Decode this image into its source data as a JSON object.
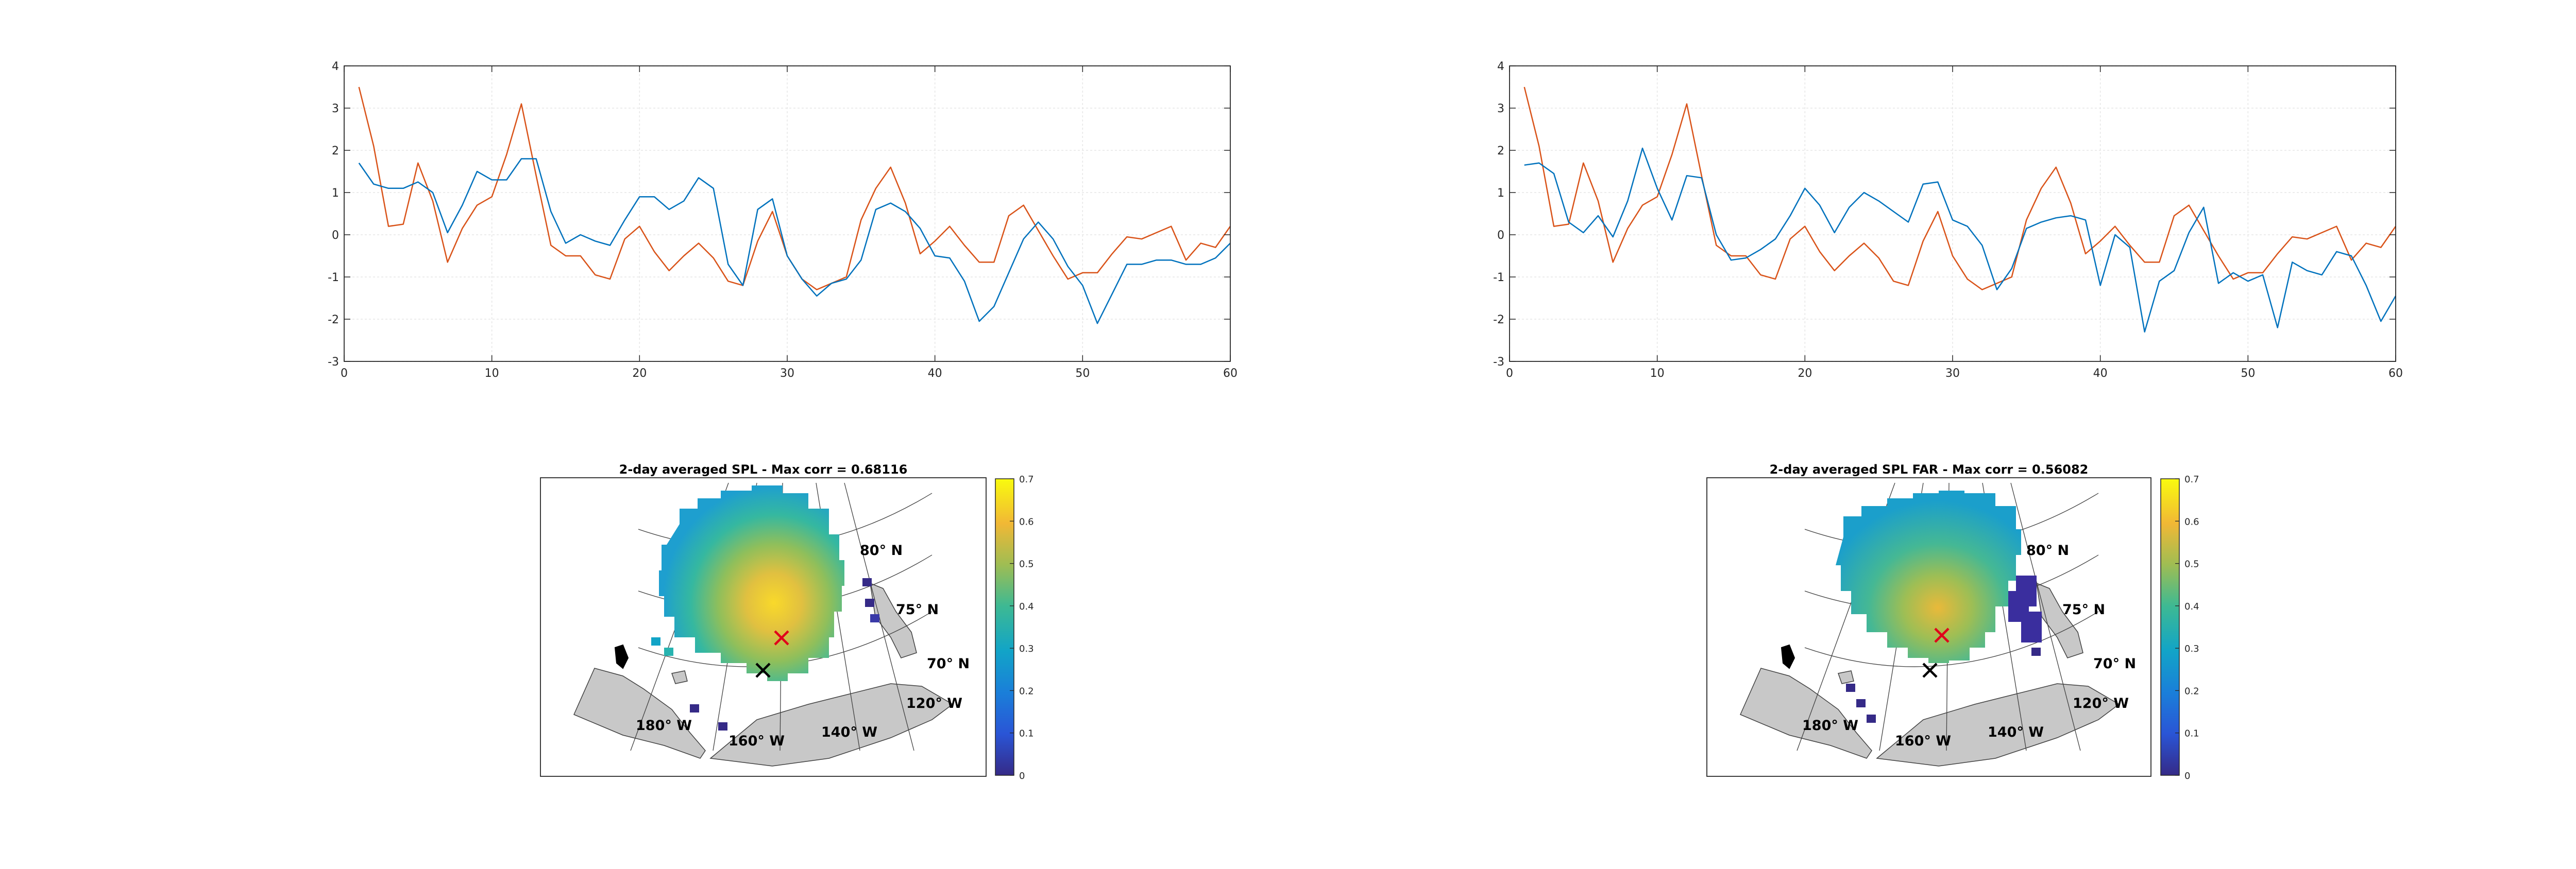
{
  "chart_data": [
    {
      "type": "line",
      "xlim": [
        0,
        60
      ],
      "ylim": [
        -3,
        4
      ],
      "xticks": [
        "0",
        "10",
        "20",
        "30",
        "40",
        "50",
        "60"
      ],
      "yticks": [
        "4",
        "3",
        "2",
        "1",
        "0",
        "-1",
        "-2",
        "-3"
      ],
      "grid": true,
      "colors": [
        "#d95319",
        "#0072bd"
      ],
      "x": [
        1,
        2,
        3,
        4,
        5,
        6,
        7,
        8,
        9,
        10,
        11,
        12,
        13,
        14,
        15,
        16,
        17,
        18,
        19,
        20,
        21,
        22,
        23,
        24,
        25,
        26,
        27,
        28,
        29,
        30,
        31,
        32,
        33,
        34,
        35,
        36,
        37,
        38,
        39,
        40,
        41,
        42,
        43,
        44,
        45,
        46,
        47,
        48,
        49,
        50,
        51,
        52,
        53,
        54,
        55,
        56,
        57,
        58,
        59,
        60
      ],
      "series": [
        {
          "values": [
            3.5,
            2.1,
            0.2,
            0.25,
            1.7,
            0.8,
            -0.65,
            0.15,
            0.7,
            0.9,
            1.9,
            3.1,
            1.4,
            -0.25,
            -0.5,
            -0.5,
            -0.95,
            -1.05,
            -0.1,
            0.2,
            -0.4,
            -0.85,
            -0.5,
            -0.2,
            -0.55,
            -1.1,
            -1.2,
            -0.15,
            0.55,
            -0.5,
            -1.05,
            -1.3,
            -1.15,
            -1.0,
            0.35,
            1.1,
            1.6,
            0.75,
            -0.45,
            -0.15,
            0.2,
            -0.25,
            -0.65,
            -0.65,
            0.45,
            0.7,
            0.1,
            -0.5,
            -1.05,
            -0.9,
            -0.9,
            -0.45,
            -0.05,
            -0.1,
            0.05,
            0.2,
            -0.6,
            -0.2,
            -0.3,
            0.2
          ]
        },
        {
          "values": [
            1.7,
            1.2,
            1.1,
            1.1,
            1.25,
            1.0,
            0.05,
            0.7,
            1.5,
            1.3,
            1.3,
            1.8,
            1.8,
            0.55,
            -0.2,
            0.0,
            -0.15,
            -0.25,
            0.35,
            0.9,
            0.9,
            0.6,
            0.8,
            1.35,
            1.1,
            -0.7,
            -1.2,
            0.6,
            0.85,
            -0.5,
            -1.05,
            -1.45,
            -1.15,
            -1.05,
            -0.6,
            0.6,
            0.75,
            0.55,
            0.15,
            -0.5,
            -0.55,
            -1.1,
            -2.05,
            -1.7,
            -0.9,
            -0.1,
            0.3,
            -0.1,
            -0.75,
            -1.2,
            -2.1,
            -1.4,
            -0.7,
            -0.7,
            -0.6,
            -0.6,
            -0.7,
            -0.7,
            -0.55,
            -0.2
          ]
        }
      ]
    },
    {
      "type": "line",
      "xlim": [
        0,
        60
      ],
      "ylim": [
        -3,
        4
      ],
      "xticks": [
        "0",
        "10",
        "20",
        "30",
        "40",
        "50",
        "60"
      ],
      "yticks": [
        "4",
        "3",
        "2",
        "1",
        "0",
        "-1",
        "-2",
        "-3"
      ],
      "grid": true,
      "colors": [
        "#d95319",
        "#0072bd"
      ],
      "x": [
        1,
        2,
        3,
        4,
        5,
        6,
        7,
        8,
        9,
        10,
        11,
        12,
        13,
        14,
        15,
        16,
        17,
        18,
        19,
        20,
        21,
        22,
        23,
        24,
        25,
        26,
        27,
        28,
        29,
        30,
        31,
        32,
        33,
        34,
        35,
        36,
        37,
        38,
        39,
        40,
        41,
        42,
        43,
        44,
        45,
        46,
        47,
        48,
        49,
        50,
        51,
        52,
        53,
        54,
        55,
        56,
        57,
        58,
        59,
        60
      ],
      "series": [
        {
          "values": [
            3.5,
            2.1,
            0.2,
            0.25,
            1.7,
            0.8,
            -0.65,
            0.15,
            0.7,
            0.9,
            1.9,
            3.1,
            1.4,
            -0.25,
            -0.5,
            -0.5,
            -0.95,
            -1.05,
            -0.1,
            0.2,
            -0.4,
            -0.85,
            -0.5,
            -0.2,
            -0.55,
            -1.1,
            -1.2,
            -0.15,
            0.55,
            -0.5,
            -1.05,
            -1.3,
            -1.15,
            -1.0,
            0.35,
            1.1,
            1.6,
            0.75,
            -0.45,
            -0.15,
            0.2,
            -0.25,
            -0.65,
            -0.65,
            0.45,
            0.7,
            0.1,
            -0.5,
            -1.05,
            -0.9,
            -0.9,
            -0.45,
            -0.05,
            -0.1,
            0.05,
            0.2,
            -0.6,
            -0.2,
            -0.3,
            0.2
          ]
        },
        {
          "values": [
            1.65,
            1.7,
            1.45,
            0.3,
            0.05,
            0.45,
            -0.05,
            0.8,
            2.05,
            1.1,
            0.35,
            1.4,
            1.35,
            0.0,
            -0.6,
            -0.55,
            -0.35,
            -0.1,
            0.45,
            1.1,
            0.7,
            0.05,
            0.65,
            1.0,
            0.8,
            0.55,
            0.3,
            1.2,
            1.25,
            0.35,
            0.2,
            -0.25,
            -1.3,
            -0.8,
            0.15,
            0.3,
            0.4,
            0.45,
            0.35,
            -1.2,
            0.0,
            -0.3,
            -2.3,
            -1.1,
            -0.85,
            0.05,
            0.65,
            -1.15,
            -0.9,
            -1.1,
            -0.95,
            -2.2,
            -0.65,
            -0.85,
            -0.95,
            -0.4,
            -0.5,
            -1.2,
            -2.05,
            -1.45
          ]
        }
      ]
    },
    {
      "type": "heatmap",
      "title": "2-day averaged SPL - Max corr = 0.68116",
      "colorbar": {
        "min": 0,
        "max": 0.7,
        "ticks": [
          "0.7",
          "0.6",
          "0.5",
          "0.4",
          "0.3",
          "0.2",
          "0.1",
          "0"
        ]
      },
      "lat_labels": [
        "80° N",
        "75° N",
        "70° N"
      ],
      "lon_labels": [
        "120° W",
        "140° W",
        "160° W",
        "180° W"
      ],
      "max_corr": 0.68116
    },
    {
      "type": "heatmap",
      "title": "2-day averaged SPL FAR - Max corr = 0.56082",
      "colorbar": {
        "min": 0,
        "max": 0.7,
        "ticks": [
          "0.7",
          "0.6",
          "0.5",
          "0.4",
          "0.3",
          "0.2",
          "0.1",
          "0"
        ]
      },
      "lat_labels": [
        "80° N",
        "75° N",
        "70° N"
      ],
      "lon_labels": [
        "120° W",
        "140° W",
        "160° W",
        "180° W"
      ],
      "max_corr": 0.56082
    }
  ]
}
